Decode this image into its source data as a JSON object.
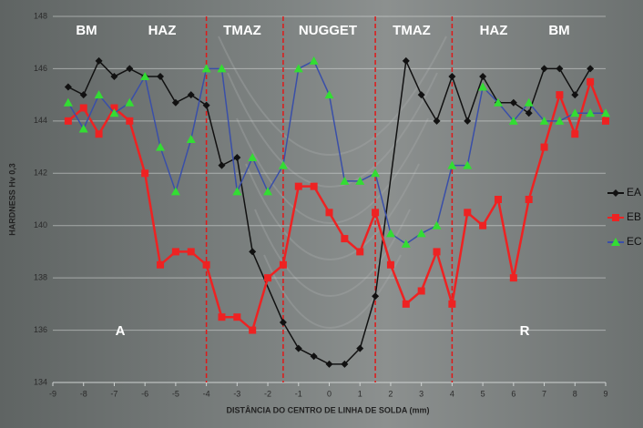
{
  "chart_data": {
    "type": "line",
    "y_label": "HARDNESS Hv 0,3",
    "x_label": "DISTÂNCIA DO CENTRO DE LINHA DE SOLDA (mm)",
    "xlim": [
      -9,
      9
    ],
    "xticks": [
      -9,
      -8,
      -7,
      -6,
      -5,
      -4,
      -3,
      -2,
      -1,
      0,
      1,
      2,
      3,
      4,
      5,
      6,
      7,
      8,
      9
    ],
    "ylim": [
      134,
      148
    ],
    "yticks": [
      134,
      136,
      138,
      140,
      142,
      144,
      146,
      148
    ],
    "grid": true,
    "legend": "right",
    "zone_boundaries": [
      -4,
      -1.5,
      1.5,
      4
    ],
    "zone_labels": [
      "BM",
      "HAZ",
      "TMAZ",
      "NUGGET",
      "TMAZ",
      "HAZ",
      "BM"
    ],
    "side_labels": [
      "A",
      "R"
    ],
    "series": [
      {
        "name": "EA",
        "color": "#111111",
        "marker": "diamond",
        "marker_color": "#111111",
        "x": [
          -8.5,
          -8,
          -7.5,
          -7,
          -6.5,
          -6,
          -5.5,
          -5,
          -4.5,
          -4,
          -3.5,
          -3,
          -2.5,
          -1.5,
          -1,
          -0.5,
          0,
          0.5,
          1,
          1.5,
          2.5,
          3,
          3.5,
          4,
          4.5,
          5,
          5.5,
          6,
          6.5,
          7,
          7.5,
          8,
          8.5
        ],
        "values": [
          145.3,
          145.0,
          146.3,
          145.7,
          146.0,
          145.7,
          145.7,
          144.7,
          145.0,
          144.6,
          142.3,
          142.6,
          139.0,
          136.3,
          135.3,
          135.0,
          134.7,
          134.7,
          135.3,
          137.3,
          146.3,
          145.0,
          144.0,
          145.7,
          144.0,
          145.7,
          144.7,
          144.7,
          144.3,
          146.0,
          146.0,
          145.0,
          146.0
        ]
      },
      {
        "name": "EB",
        "color": "#ee2222",
        "marker": "square",
        "marker_color": "#ee2222",
        "x": [
          -8.5,
          -8,
          -7.5,
          -7,
          -6.5,
          -6,
          -5.5,
          -5,
          -4.5,
          -4,
          -3.5,
          -3,
          -2.5,
          -2,
          -1.5,
          -1,
          -0.5,
          0,
          0.5,
          1,
          1.5,
          2,
          2.5,
          3,
          3.5,
          4,
          4.5,
          5,
          5.5,
          6,
          6.5,
          7,
          7.5,
          8,
          8.5,
          9
        ],
        "values": [
          144.0,
          144.5,
          143.5,
          144.5,
          144.0,
          142.0,
          138.5,
          139.0,
          139.0,
          138.5,
          136.5,
          136.5,
          136.0,
          138.0,
          138.5,
          141.5,
          141.5,
          140.5,
          139.5,
          139.0,
          140.5,
          138.5,
          137.0,
          137.5,
          139.0,
          137.0,
          140.5,
          140.0,
          141.0,
          138.0,
          141.0,
          143.0,
          145.0,
          143.5,
          145.5,
          144.0
        ]
      },
      {
        "name": "EC",
        "color": "#3a4fa8",
        "marker": "triangle",
        "marker_color": "#33dd33",
        "x": [
          -8.5,
          -8,
          -7.5,
          -7,
          -6.5,
          -6,
          -5.5,
          -5,
          -4.5,
          -4,
          -3.5,
          -3,
          -2.5,
          -2,
          -1.5,
          -1,
          -0.5,
          0,
          0.5,
          1,
          1.5,
          2,
          2.5,
          3,
          3.5,
          4,
          4.5,
          5,
          5.5,
          6,
          6.5,
          7,
          7.5,
          8,
          8.5,
          9
        ],
        "values": [
          144.7,
          143.7,
          145.0,
          144.3,
          144.7,
          145.7,
          143.0,
          141.3,
          143.3,
          146.0,
          146.0,
          141.3,
          142.6,
          141.3,
          142.3,
          146.0,
          146.3,
          145.0,
          141.7,
          141.7,
          142.0,
          139.7,
          139.3,
          139.7,
          140.0,
          142.3,
          142.3,
          145.3,
          144.7,
          144.0,
          144.7,
          144.0,
          144.0,
          144.3,
          144.3,
          144.3
        ]
      }
    ]
  }
}
